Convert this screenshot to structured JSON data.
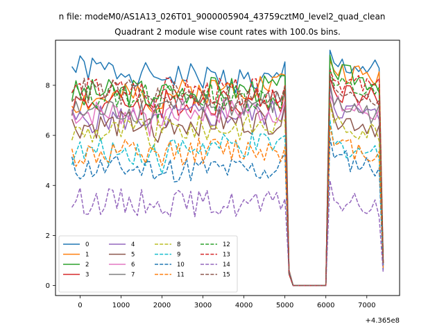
{
  "chart_data": {
    "type": "line",
    "suptitle": "n file: modeM0/AS1A13_026T01_9000005904_43759cztM0_level2_quad_clean",
    "title": "Quadrant 2 module wise count rates with 100.0s bins.",
    "xlabel": "",
    "ylabel": "",
    "x_offset_label": "+4.365e8",
    "xlim": [
      -600,
      7800
    ],
    "ylim": [
      -0.4,
      9.8
    ],
    "xticks": [
      0,
      1000,
      2000,
      3000,
      4000,
      5000,
      6000,
      7000
    ],
    "yticks": [
      0,
      2,
      4,
      6,
      8
    ],
    "xtick_labels": [
      "0",
      "1000",
      "2000",
      "3000",
      "4000",
      "5000",
      "6000",
      "7000"
    ],
    "ytick_labels": [
      "0",
      "2",
      "4",
      "6",
      "8"
    ],
    "legend": {
      "placement": "lower-left",
      "columns": 4
    },
    "grid": false,
    "x_start": -200,
    "x_step": 100,
    "x_end": 7400,
    "gap": {
      "start": 5100,
      "end": 6000
    },
    "series": [
      {
        "name": "0",
        "color": "#1f77b4",
        "dash": "solid",
        "level_start": 8.7,
        "level_end": 8.1,
        "rise": 8.9,
        "after": [
          9.4,
          8.9
        ],
        "end_value": 1.0,
        "seed": 1
      },
      {
        "name": "1",
        "color": "#ff7f0e",
        "dash": "solid",
        "level_start": 7.3,
        "level_end": 8.1,
        "rise": 8.5,
        "after": [
          9.0,
          8.6
        ],
        "end_value": 0.9,
        "seed": 2
      },
      {
        "name": "2",
        "color": "#2ca02c",
        "dash": "solid",
        "level_start": 7.7,
        "level_end": 7.9,
        "rise": 8.2,
        "after": [
          9.2,
          8.5
        ],
        "end_value": 0.9,
        "seed": 3
      },
      {
        "name": "3",
        "color": "#d62728",
        "dash": "solid",
        "level_start": 7.3,
        "level_end": 7.4,
        "rise": 7.8,
        "after": [
          8.3,
          7.8
        ],
        "end_value": 0.9,
        "seed": 4
      },
      {
        "name": "4",
        "color": "#9467bd",
        "dash": "solid",
        "level_start": 6.6,
        "level_end": 6.9,
        "rise": 7.3,
        "after": [
          8.0,
          7.1
        ],
        "end_value": 0.8,
        "seed": 5
      },
      {
        "name": "5",
        "color": "#8c564b",
        "dash": "solid",
        "level_start": 6.4,
        "level_end": 6.6,
        "rise": 7.0,
        "after": [
          7.4,
          6.7
        ],
        "end_value": 0.8,
        "seed": 6
      },
      {
        "name": "6",
        "color": "#e377c2",
        "dash": "solid",
        "level_start": 6.9,
        "level_end": 7.0,
        "rise": 7.3,
        "after": [
          7.6,
          7.2
        ],
        "end_value": 0.8,
        "seed": 7
      },
      {
        "name": "7",
        "color": "#7f7f7f",
        "dash": "solid",
        "level_start": 6.9,
        "level_end": 7.3,
        "rise": 7.7,
        "after": [
          8.1,
          7.2
        ],
        "end_value": 0.8,
        "seed": 8
      },
      {
        "name": "8",
        "color": "#bcbd22",
        "dash": "dashed",
        "level_start": 6.1,
        "level_end": 6.4,
        "rise": 6.8,
        "after": [
          7.3,
          6.5
        ],
        "end_value": 0.7,
        "seed": 9
      },
      {
        "name": "9",
        "color": "#17becf",
        "dash": "dashed",
        "level_start": 5.3,
        "level_end": 5.6,
        "rise": 5.9,
        "after": [
          6.6,
          5.6
        ],
        "end_value": 0.7,
        "seed": 10
      },
      {
        "name": "10",
        "color": "#1f77b4",
        "dash": "dashed",
        "level_start": 4.7,
        "level_end": 4.6,
        "rise": 5.3,
        "after": [
          5.9,
          5.1
        ],
        "end_value": 0.6,
        "seed": 11
      },
      {
        "name": "11",
        "color": "#ff7f0e",
        "dash": "dashed",
        "level_start": 5.2,
        "level_end": 5.5,
        "rise": 5.7,
        "after": [
          6.4,
          5.6
        ],
        "end_value": 0.7,
        "seed": 12
      },
      {
        "name": "12",
        "color": "#2ca02c",
        "dash": "dashed",
        "level_start": 7.6,
        "level_end": 7.5,
        "rise": 7.9,
        "after": [
          8.7,
          8.0
        ],
        "end_value": 0.9,
        "seed": 13
      },
      {
        "name": "13",
        "color": "#d62728",
        "dash": "dashed",
        "level_start": 7.8,
        "level_end": 7.7,
        "rise": 8.0,
        "after": [
          8.6,
          8.2
        ],
        "end_value": 0.9,
        "seed": 14
      },
      {
        "name": "14",
        "color": "#9467bd",
        "dash": "dashed",
        "level_start": 3.4,
        "level_end": 3.2,
        "rise": 3.6,
        "after": [
          4.2,
          3.4
        ],
        "end_value": 0.5,
        "seed": 15
      },
      {
        "name": "15",
        "color": "#8c564b",
        "dash": "dashed",
        "level_start": 7.8,
        "level_end": 7.4,
        "rise": 7.8,
        "after": [
          8.4,
          7.9
        ],
        "end_value": 0.9,
        "seed": 16
      }
    ]
  }
}
